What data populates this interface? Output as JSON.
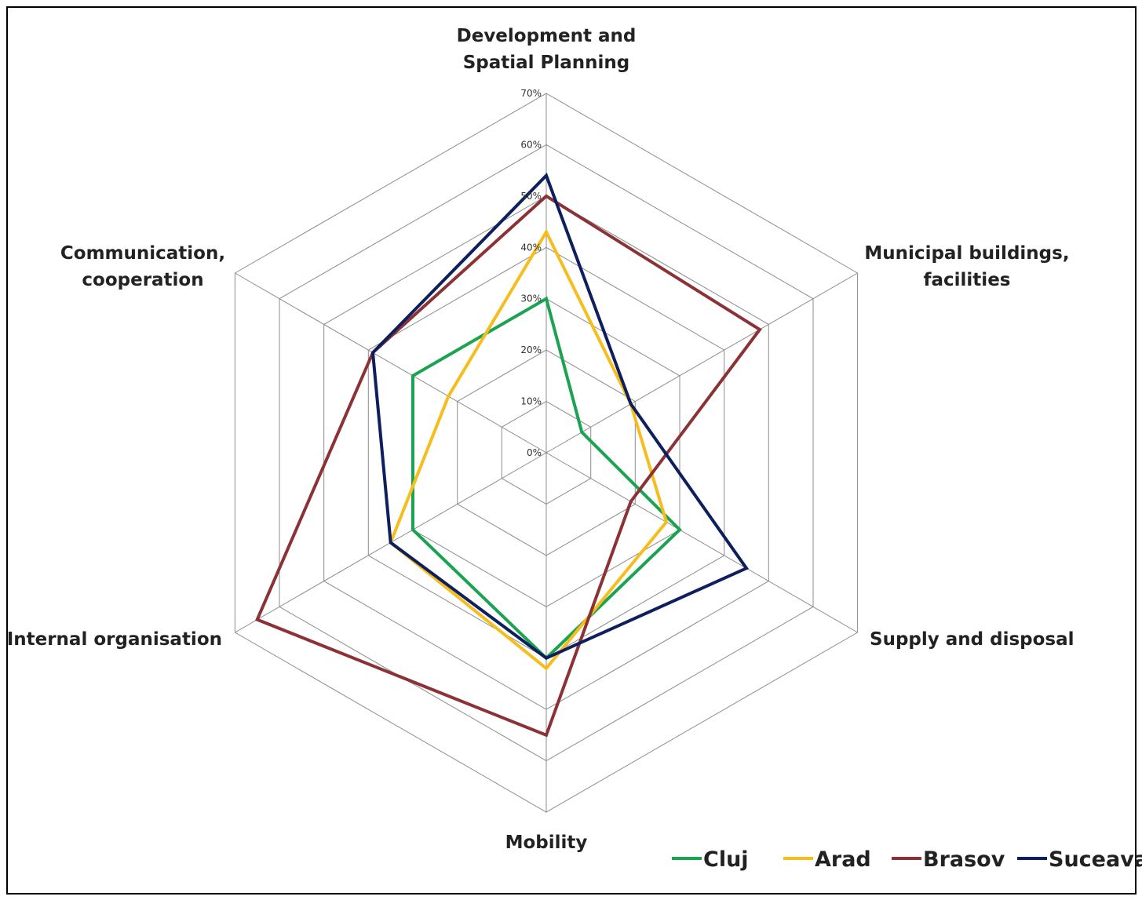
{
  "chart_data": {
    "type": "radar",
    "title": "",
    "axes": [
      [
        "Development and",
        "Spatial Planning"
      ],
      [
        "Municipal buildings,",
        "facilities"
      ],
      [
        "Supply and disposal"
      ],
      [
        "Mobility"
      ],
      [
        "Internal organisation"
      ],
      [
        "Communication,",
        "cooperation"
      ]
    ],
    "ticks": [
      "0%",
      "10%",
      "20%",
      "30%",
      "40%",
      "50%",
      "60%",
      "70%"
    ],
    "range": [
      0,
      70
    ],
    "grid": true,
    "legend_position": "bottom-right",
    "series": [
      {
        "name": "Cluj",
        "color": "#1aa351",
        "values": [
          30,
          8,
          30,
          40,
          30,
          30
        ]
      },
      {
        "name": "Arad",
        "color": "#f5be1e",
        "values": [
          43,
          19,
          27,
          42,
          35,
          22
        ]
      },
      {
        "name": "Brasov",
        "color": "#8b3236",
        "values": [
          50,
          48,
          19,
          55,
          65,
          39
        ]
      },
      {
        "name": "Suceava",
        "color": "#0d1f5c",
        "values": [
          54,
          19,
          45,
          40,
          35,
          39
        ]
      }
    ]
  }
}
